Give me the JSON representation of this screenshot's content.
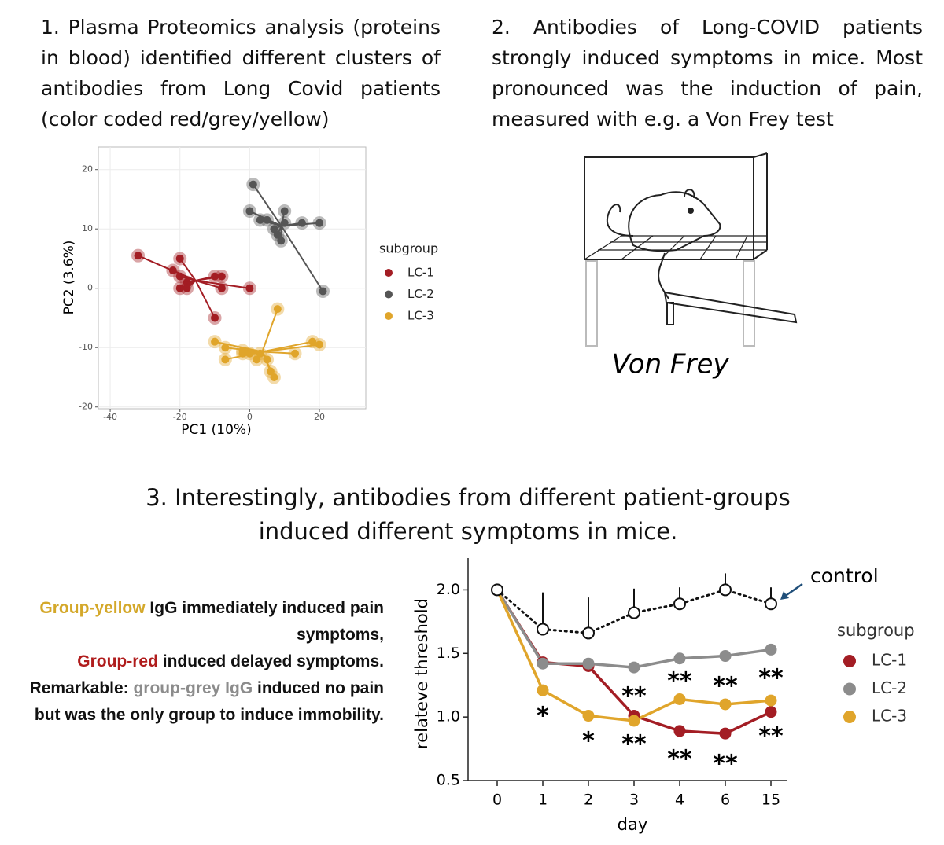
{
  "panel1_text": "1. Plasma Proteomics analysis (proteins in blood) identified different clusters of antibodies from Long Covid patients (color coded red/grey/yellow)",
  "panel2_text": "2. Antibodies of Long-COVID patients strongly induced symptoms in mice. Most pronounced was the induction of pain, measured with e.g. a Von Frey test",
  "von_frey_label": "Von Frey",
  "panel3_title": "3. Interestingly, antibodies from different patient-groups induced different symptoms in mice.",
  "notes": [
    {
      "text": "Group-yellow",
      "color": "#d4a82a"
    },
    {
      "text": " IgG immediately induced pain symptoms,",
      "color": "#111111"
    },
    {
      "text": "Group-red",
      "color": "#b01c1c"
    },
    {
      "text": " induced delayed symptoms.",
      "color": "#111111"
    },
    {
      "text": "Remarkable: ",
      "color": "#111111"
    },
    {
      "text": "group-grey IgG",
      "color": "#8c8c8c"
    },
    {
      "text": " induced no pain but was the only group to induce immobility.",
      "color": "#111111"
    }
  ],
  "chart_data": [
    {
      "type": "scatter",
      "x_label": "PC1 (10%)",
      "y_label": "PC2 (3.6%)",
      "legend_title": "subgroup",
      "xlim": [
        -43.4,
        33.3
      ],
      "ylim": [
        -20.3,
        23.8
      ],
      "xticks": [
        -40,
        -20,
        0,
        20
      ],
      "yticks": [
        -20,
        -10,
        0,
        10,
        20
      ],
      "grid": true,
      "series": [
        {
          "name": "LC-1",
          "color": "#a31d24",
          "x": [
            -32,
            -22,
            -20,
            -20,
            -18,
            -20,
            -18,
            -10,
            -8,
            -8,
            0,
            -10
          ],
          "y": [
            5.5,
            3,
            5,
            2,
            1,
            0,
            0,
            2,
            2,
            0,
            0,
            -5
          ]
        },
        {
          "name": "LC-2",
          "color": "#555555",
          "x": [
            1,
            0,
            3,
            5,
            7,
            8,
            10,
            10,
            9,
            15,
            20,
            21
          ],
          "y": [
            17.5,
            13,
            11.5,
            11.5,
            10,
            9,
            13,
            11,
            8,
            11,
            11,
            -0.5
          ]
        },
        {
          "name": "LC-3",
          "color": "#e0a52b",
          "x": [
            8,
            -10,
            -7,
            -2,
            -7,
            0,
            3,
            2,
            5,
            6,
            7,
            13,
            18,
            20,
            -2
          ],
          "y": [
            -3.5,
            -9,
            -10,
            -10.5,
            -12,
            -11,
            -11,
            -12,
            -12,
            -14,
            -15,
            -11,
            -9,
            -9.5,
            -11
          ]
        }
      ]
    },
    {
      "type": "line",
      "x_label": "day",
      "y_label": "relateve threshold",
      "legend_title": "subgroup",
      "categories": [
        "0",
        "1",
        "2",
        "3",
        "4",
        "6",
        "15"
      ],
      "ylim": [
        0.5,
        2.25
      ],
      "yticks": [
        {
          "value": 0.5,
          "label": "0.5"
        },
        {
          "value": 1,
          "label": "1.0"
        },
        {
          "value": 1.5,
          "label": "1.5"
        },
        {
          "value": 2,
          "label": "2.0"
        }
      ],
      "series": [
        {
          "name": "control",
          "color": "#111111",
          "values": [
            2.0,
            1.69,
            1.66,
            1.82,
            1.89,
            2.0,
            1.89
          ],
          "errors": [
            0,
            0.29,
            0.28,
            0.19,
            0.13,
            0.13,
            0.13
          ]
        },
        {
          "name": "LC-1",
          "color": "#a31d24",
          "values": [
            2.0,
            1.43,
            1.4,
            1.01,
            0.89,
            0.87,
            1.04
          ]
        },
        {
          "name": "LC-2",
          "color": "#8c8c8c",
          "values": [
            2.0,
            1.42,
            1.42,
            1.39,
            1.46,
            1.48,
            1.53
          ]
        },
        {
          "name": "LC-3",
          "color": "#e0a52b",
          "values": [
            2.0,
            1.21,
            1.01,
            0.97,
            1.14,
            1.1,
            1.13
          ]
        }
      ],
      "annotations": [
        "*",
        "*",
        "**",
        "**",
        "**",
        "**",
        "**",
        "**",
        "**",
        "**"
      ]
    }
  ]
}
